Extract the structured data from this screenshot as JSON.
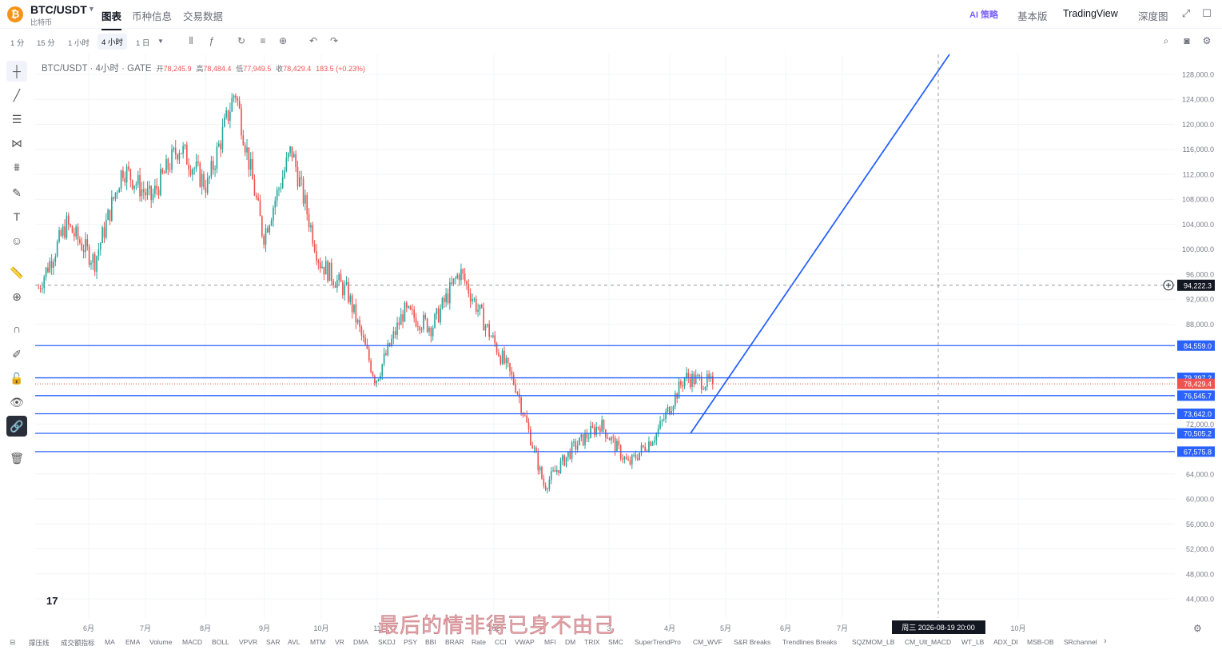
{
  "header": {
    "pair": "BTC/USDT",
    "pair_sub": "比特币",
    "tabs": [
      "图表",
      "币种信息",
      "交易数据"
    ],
    "ai_label": "AI 策略",
    "views": [
      "基本版",
      "TradingView",
      "深度图"
    ]
  },
  "toolbar": {
    "timeframes": [
      "1 分",
      "15 分",
      "1 小时",
      "4 小时",
      "1 日"
    ],
    "active_timeframe": "4 小时"
  },
  "legend": {
    "symbol": "BTC/USDT · 4小时 · GATE",
    "open_label": "开",
    "open": "78,245.9",
    "high_label": "高",
    "high": "78,484.4",
    "low_label": "低",
    "low": "77,949.5",
    "close_label": "收",
    "close": "78,429.4",
    "change": "183.5 (+0.23%)"
  },
  "colors": {
    "up": "#26a69a",
    "down": "#ef5350",
    "hline": "#2962ff",
    "trend": "#2962ff",
    "label_bg": "#2962ff",
    "price_bg": "#ef5350"
  },
  "chart_data": {
    "type": "candlestick",
    "title": "",
    "x_labels": [
      "6月",
      "7月",
      "8月",
      "9月",
      "10月",
      "11",
      "202",
      "3",
      "4月",
      "5月",
      "6月",
      "7月",
      "10月"
    ],
    "y_ticks": [
      "128,000.0",
      "124,000.0",
      "120,000.0",
      "116,000.0",
      "112,000.0",
      "108,000.0",
      "104,000.0",
      "100,000.0",
      "96,000.0",
      "92,000.0",
      "88,000.0",
      "72,000.0",
      "64,000.0",
      "60,000.0",
      "56,000.0",
      "52,000.0",
      "48,000.0",
      "44,000.0"
    ],
    "ylim": [
      41000,
      131500
    ],
    "horizontal_levels": [
      "84,559.0",
      "79,397.2",
      "76,545.7",
      "73,642.0",
      "70,505.2",
      "67,575.8"
    ],
    "current_price": "78,429.4",
    "crosshair_price": "94,222.3",
    "crosshair_time": "周三 2026-08-19   20:00",
    "path_key_prices": [
      93800,
      104000,
      98000,
      113000,
      108000,
      116500,
      110000,
      125500,
      102000,
      116000,
      98000,
      93000,
      79000,
      90000,
      87500,
      96500,
      87000,
      78000,
      62000,
      68000,
      72000,
      65500,
      70500,
      79500,
      78429
    ]
  },
  "indicators": [
    "撑压线",
    "成交额指标",
    "MA",
    "EMA",
    "Volume",
    "MACD",
    "BOLL",
    "VPVR",
    "SAR",
    "AVL",
    "MTM",
    "VR",
    "DMA",
    "SKDJ",
    "PSY",
    "BBI",
    "BRAR",
    "Rate",
    "CCI",
    "VWAP",
    "MFI",
    "DM",
    "TRIX",
    "SMC",
    "SuperTrendPro",
    "CM_WVF",
    "S&R Breaks",
    "Trendlines Breaks",
    "SQZMOM_LB",
    "CM_Ult_MACD",
    "WT_LB",
    "ADX_DI",
    "MSB-OB",
    "SRchannel"
  ],
  "watermark": "最后的情非得已身不由己",
  "tv_logo": "17"
}
